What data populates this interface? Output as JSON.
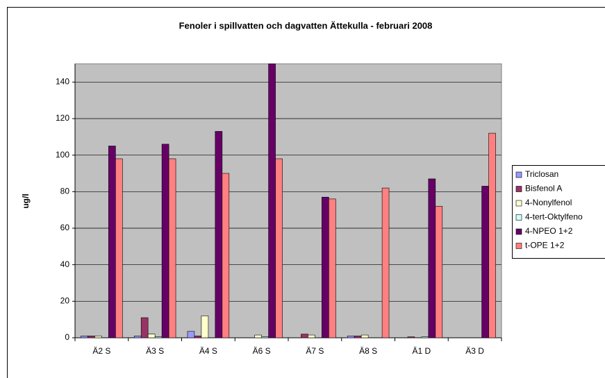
{
  "chart_data": {
    "type": "bar",
    "title": "Fenoler i spillvatten och dagvatten Ättekulla - februari 2008",
    "y_label": "ug/l",
    "categories": [
      "Ä2 S",
      "Ä3 S",
      "Ä4 S",
      "Ä6 S",
      "Ä7 S",
      "Ä8 S",
      "Ä1 D",
      "Ä3 D"
    ],
    "series": [
      {
        "name": "Triclosan",
        "color": "#9999ff",
        "values": [
          1,
          1,
          3.5,
          0,
          0,
          1,
          0,
          0
        ]
      },
      {
        "name": "Bisfenol A",
        "color": "#993366",
        "values": [
          1,
          11,
          1,
          0,
          2,
          1,
          0.5,
          0
        ]
      },
      {
        "name": "4-Nonylfenol",
        "color": "#ffffcc",
        "values": [
          1,
          2,
          12,
          1.5,
          1.5,
          1.5,
          0,
          0
        ]
      },
      {
        "name": "4-tert-Oktylfeno",
        "color": "#ccffff",
        "values": [
          0,
          0.5,
          0,
          0.5,
          0,
          0,
          0.5,
          0
        ]
      },
      {
        "name": "4-NPEO 1+2",
        "color": "#660066",
        "values": [
          105,
          106,
          113,
          150,
          77,
          0,
          87,
          83
        ]
      },
      {
        "name": "t-OPE 1+2",
        "color": "#ff8080",
        "values": [
          98,
          98,
          90,
          98,
          76,
          82,
          72,
          112
        ]
      }
    ],
    "ylim": [
      0,
      150
    ],
    "yticks": [
      0,
      20,
      40,
      60,
      80,
      100,
      120,
      140
    ],
    "grid": true,
    "legend": "right"
  }
}
